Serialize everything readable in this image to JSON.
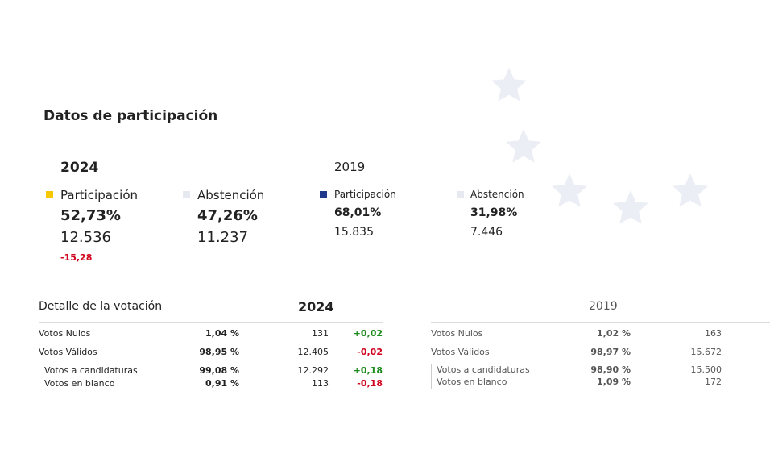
{
  "title": "Datos de participación",
  "y2024": {
    "year": "2024",
    "part_label": "Participación",
    "part_pct": "52,73%",
    "part_count": "12.536",
    "part_diff": "-15,28",
    "abs_label": "Abstención",
    "abs_pct": "47,26%",
    "abs_count": "11.237"
  },
  "y2019": {
    "year": "2019",
    "part_label": "Participación",
    "part_pct": "68,01%",
    "part_count": "15.835",
    "abs_label": "Abstención",
    "abs_pct": "31,98%",
    "abs_count": "7.446"
  },
  "colors": {
    "part2024": "#f5c800",
    "part2019": "#1f3a8a",
    "abs": "#e6e9f0",
    "star": "#eceef5"
  },
  "detail": {
    "title": "Detalle de la votación",
    "year2024": "2024",
    "year2019": "2019",
    "rows2024": [
      {
        "label": "Votos Nulos",
        "pct": "1,04 %",
        "count": "131",
        "diff": "+0,02"
      },
      {
        "label": "Votos Válidos",
        "pct": "98,95 %",
        "count": "12.405",
        "diff": "-0,02"
      },
      {
        "label": "Votos a candidaturas",
        "pct": "99,08 %",
        "count": "12.292",
        "diff": "+0,18"
      },
      {
        "label": "Votos en blanco",
        "pct": "0,91 %",
        "count": "113",
        "diff": "-0,18"
      }
    ],
    "rows2019": [
      {
        "label": "Votos Nulos",
        "pct": "1,02 %",
        "count": "163"
      },
      {
        "label": "Votos Válidos",
        "pct": "98,97 %",
        "count": "15.672"
      },
      {
        "label": "Votos a candidaturas",
        "pct": "98,90 %",
        "count": "15.500"
      },
      {
        "label": "Votos en blanco",
        "pct": "1,09 %",
        "count": "172"
      }
    ]
  }
}
